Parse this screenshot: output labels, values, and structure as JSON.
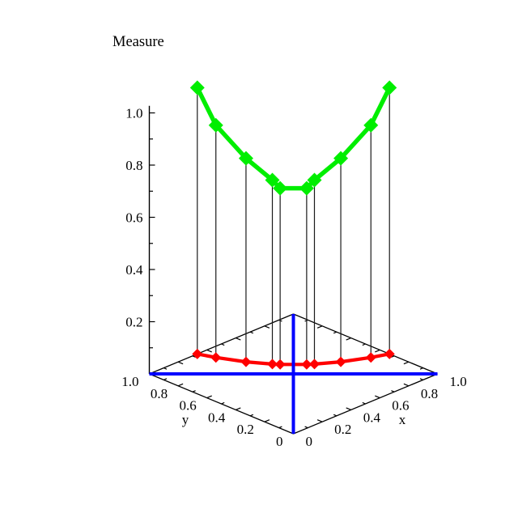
{
  "title": "Measure",
  "colors": {
    "curve_green": "#00ee00",
    "base_red": "#ff0000",
    "diagonal_blue": "#0000ff",
    "axis_black": "#000000",
    "drop_line": "#1a1a1a",
    "background": "#ffffff"
  },
  "chart_data": {
    "type": "line",
    "projection": "3d-diamond-base",
    "title": "Measure",
    "xlabel": "x",
    "ylabel": "y",
    "zlabel": "Measure",
    "xlim": [
      0,
      1
    ],
    "ylim": [
      0,
      1
    ],
    "zlim": [
      0,
      1.03
    ],
    "grid": false,
    "x_tick_values": [
      0,
      0.2,
      0.4,
      0.6,
      0.8,
      1.0
    ],
    "x_tick_labels": [
      "0",
      "0.2",
      "0.4",
      "0.6",
      "0.8",
      "1.0"
    ],
    "y_tick_values": [
      0,
      0.2,
      0.4,
      0.6,
      0.8,
      1.0
    ],
    "y_tick_labels": [
      "0",
      "0.2",
      "0.4",
      "0.6",
      "0.8",
      "1.0"
    ],
    "z_tick_values": [
      0.2,
      0.4,
      0.6,
      0.8,
      1.0
    ],
    "z_tick_labels": [
      "0.2",
      "0.4",
      "0.6",
      "0.8",
      "1.0"
    ],
    "minor_tick_step": 0.1,
    "series": [
      {
        "name": "measure-curve",
        "color": "#00ee00",
        "marker": "diamond",
        "points": [
          [
            0.333,
            1.0,
            1.02
          ],
          [
            0.368,
            0.906,
            0.89
          ],
          [
            0.436,
            0.765,
            0.78
          ],
          [
            0.509,
            0.655,
            0.705
          ],
          [
            0.533,
            0.625,
            0.675
          ],
          [
            0.625,
            0.533,
            0.675
          ],
          [
            0.655,
            0.509,
            0.705
          ],
          [
            0.765,
            0.436,
            0.78
          ],
          [
            0.906,
            0.368,
            0.89
          ],
          [
            1.0,
            0.333,
            1.02
          ]
        ]
      },
      {
        "name": "base-projection-curve",
        "color": "#ff0000",
        "marker": "diamond",
        "points": [
          [
            0.333,
            1.0,
            0
          ],
          [
            0.368,
            0.906,
            0
          ],
          [
            0.436,
            0.765,
            0
          ],
          [
            0.509,
            0.655,
            0
          ],
          [
            0.533,
            0.625,
            0
          ],
          [
            0.625,
            0.533,
            0
          ],
          [
            0.655,
            0.509,
            0
          ],
          [
            0.765,
            0.436,
            0
          ],
          [
            0.906,
            0.368,
            0
          ],
          [
            1.0,
            0.333,
            0
          ]
        ]
      }
    ],
    "base_diagonals": {
      "color": "#0000ff",
      "lines": [
        [
          [
            0,
            0
          ],
          [
            1,
            1
          ]
        ],
        [
          [
            0,
            1
          ],
          [
            1,
            0
          ]
        ]
      ]
    },
    "drop_lines": {
      "color": "#1a1a1a"
    }
  }
}
